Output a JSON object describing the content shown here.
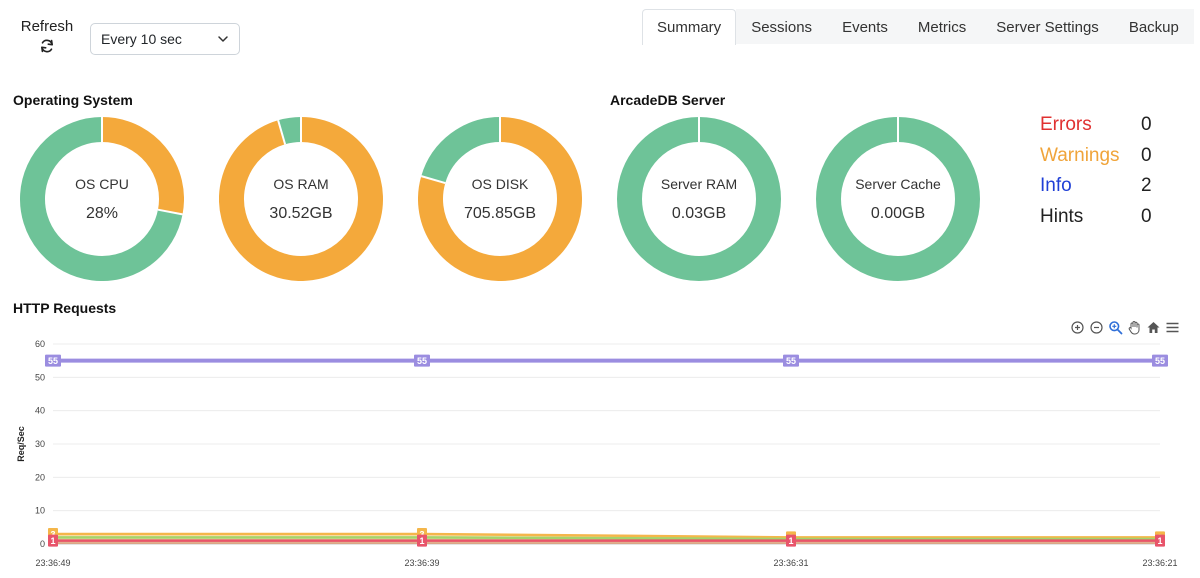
{
  "header": {
    "refresh_label": "Refresh",
    "interval_value": "Every 10 sec",
    "tabs": [
      {
        "label": "Summary",
        "active": true
      },
      {
        "label": "Sessions",
        "active": false
      },
      {
        "label": "Events",
        "active": false
      },
      {
        "label": "Metrics",
        "active": false
      },
      {
        "label": "Server Settings",
        "active": false
      },
      {
        "label": "Backup",
        "active": false
      }
    ]
  },
  "sections": {
    "os": "Operating System",
    "server": "ArcadeDB Server",
    "http": "HTTP Requests"
  },
  "gauges": [
    {
      "label": "OS CPU",
      "value": "28%",
      "used_fraction": 0.28
    },
    {
      "label": "OS RAM",
      "value": "30.52GB",
      "used_fraction": 0.955
    },
    {
      "label": "OS DISK",
      "value": "705.85GB",
      "used_fraction": 0.795
    },
    {
      "label": "Server RAM",
      "value": "0.03GB",
      "used_fraction": 0.0
    },
    {
      "label": "Server Cache",
      "value": "0.00GB",
      "used_fraction": 0.0
    }
  ],
  "colors": {
    "used": "#f4a93b",
    "free": "#6ec398",
    "errors": "#e03131",
    "warnings": "#f0a43a",
    "info": "#1f3fd6",
    "hints": "#222222",
    "series_top": "#9b8de0",
    "series_orange": "#f4b64a",
    "series_green": "#a6d36b",
    "series_red": "#e8546a"
  },
  "stats": [
    {
      "label": "Errors",
      "value": "0",
      "color_key": "errors"
    },
    {
      "label": "Warnings",
      "value": "0",
      "color_key": "warnings"
    },
    {
      "label": "Info",
      "value": "2",
      "color_key": "info"
    },
    {
      "label": "Hints",
      "value": "0",
      "color_key": "hints"
    }
  ],
  "toolbar_icons": [
    "zoom-in-icon",
    "zoom-out-icon",
    "zoom-select-icon",
    "pan-hand-icon",
    "home-icon",
    "menu-icon"
  ],
  "chart_data": {
    "type": "line",
    "title": "",
    "ylabel": "Req/Sec",
    "xlabel": "",
    "ylim": [
      0,
      60
    ],
    "yticks": [
      0,
      10,
      20,
      30,
      40,
      50,
      60
    ],
    "categories": [
      "23:36:49",
      "23:36:39",
      "23:36:31",
      "23:36:21"
    ],
    "series": [
      {
        "values": [
          55,
          55,
          55,
          55
        ],
        "color_key": "series_top",
        "show_labels": true
      },
      {
        "values": [
          3,
          3,
          2,
          2
        ],
        "color_key": "series_orange",
        "show_labels": true
      },
      {
        "values": [
          2,
          2,
          1.5,
          1.5
        ],
        "color_key": "series_green",
        "show_labels": false
      },
      {
        "values": [
          1,
          1,
          1,
          1
        ],
        "color_key": "series_red",
        "show_labels": true
      }
    ],
    "grid": true
  }
}
